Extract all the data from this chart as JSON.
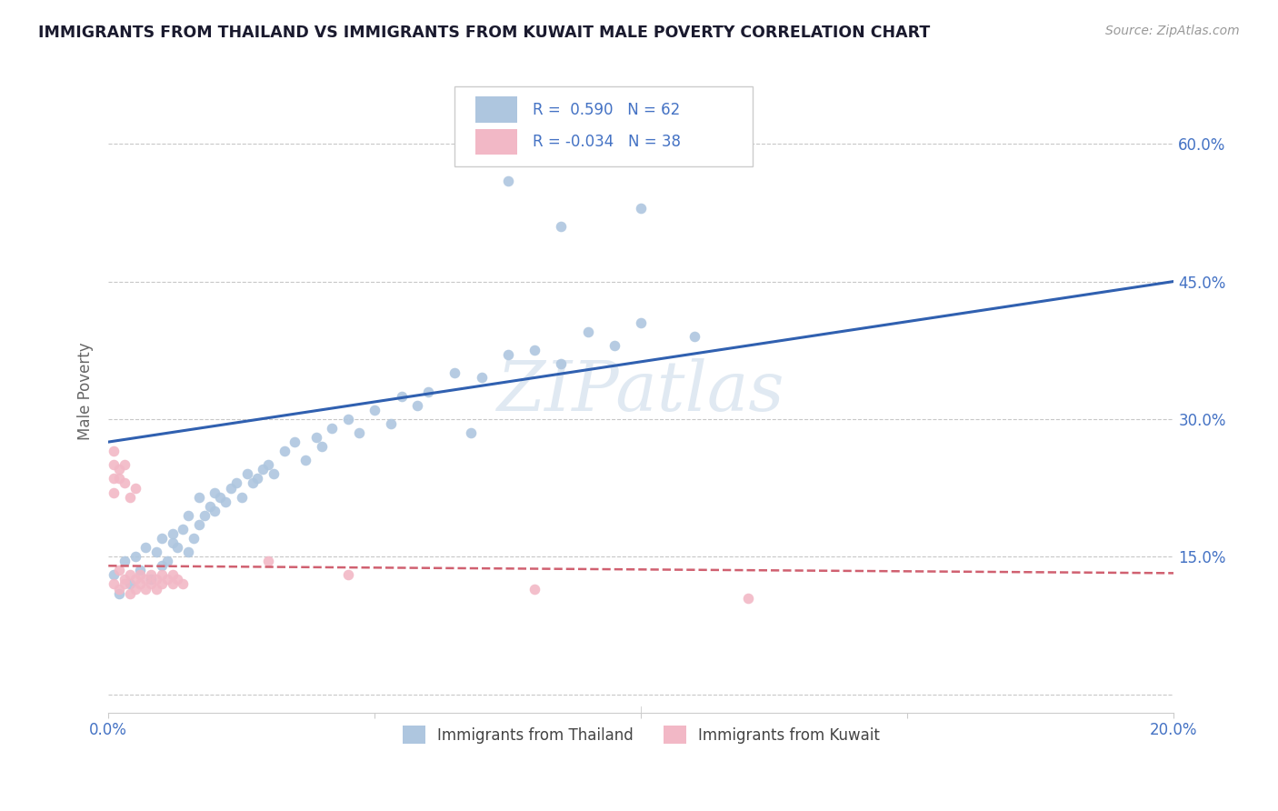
{
  "title": "IMMIGRANTS FROM THAILAND VS IMMIGRANTS FROM KUWAIT MALE POVERTY CORRELATION CHART",
  "source": "Source: ZipAtlas.com",
  "xlabel_thailand": "Immigrants from Thailand",
  "xlabel_kuwait": "Immigrants from Kuwait",
  "ylabel": "Male Poverty",
  "watermark": "ZIPatlas",
  "xlim": [
    0.0,
    0.2
  ],
  "ylim": [
    -0.02,
    0.68
  ],
  "yticks": [
    0.0,
    0.15,
    0.3,
    0.45,
    0.6
  ],
  "ytick_labels": [
    "",
    "15.0%",
    "30.0%",
    "45.0%",
    "60.0%"
  ],
  "xticks": [
    0.0,
    0.05,
    0.1,
    0.15,
    0.2
  ],
  "xtick_labels": [
    "0.0%",
    "",
    "",
    "",
    "20.0%"
  ],
  "thailand_R": 0.59,
  "thailand_N": 62,
  "kuwait_R": -0.034,
  "kuwait_N": 38,
  "thailand_color": "#aec6df",
  "kuwait_color": "#f2b8c6",
  "trend_blue": "#3060b0",
  "trend_pink": "#d06070",
  "background": "#ffffff",
  "grid_color": "#c8c8c8",
  "axis_label_color": "#4472c4",
  "title_color": "#1a1a2e",
  "thailand_scatter": [
    [
      0.001,
      0.13
    ],
    [
      0.002,
      0.11
    ],
    [
      0.003,
      0.145
    ],
    [
      0.004,
      0.12
    ],
    [
      0.005,
      0.15
    ],
    [
      0.006,
      0.135
    ],
    [
      0.007,
      0.16
    ],
    [
      0.008,
      0.125
    ],
    [
      0.009,
      0.155
    ],
    [
      0.01,
      0.14
    ],
    [
      0.01,
      0.17
    ],
    [
      0.011,
      0.145
    ],
    [
      0.012,
      0.165
    ],
    [
      0.012,
      0.175
    ],
    [
      0.013,
      0.16
    ],
    [
      0.014,
      0.18
    ],
    [
      0.015,
      0.155
    ],
    [
      0.015,
      0.195
    ],
    [
      0.016,
      0.17
    ],
    [
      0.017,
      0.185
    ],
    [
      0.017,
      0.215
    ],
    [
      0.018,
      0.195
    ],
    [
      0.019,
      0.205
    ],
    [
      0.02,
      0.2
    ],
    [
      0.02,
      0.22
    ],
    [
      0.021,
      0.215
    ],
    [
      0.022,
      0.21
    ],
    [
      0.023,
      0.225
    ],
    [
      0.024,
      0.23
    ],
    [
      0.025,
      0.215
    ],
    [
      0.026,
      0.24
    ],
    [
      0.027,
      0.23
    ],
    [
      0.028,
      0.235
    ],
    [
      0.029,
      0.245
    ],
    [
      0.03,
      0.25
    ],
    [
      0.031,
      0.24
    ],
    [
      0.033,
      0.265
    ],
    [
      0.035,
      0.275
    ],
    [
      0.037,
      0.255
    ],
    [
      0.039,
      0.28
    ],
    [
      0.04,
      0.27
    ],
    [
      0.042,
      0.29
    ],
    [
      0.045,
      0.3
    ],
    [
      0.047,
      0.285
    ],
    [
      0.05,
      0.31
    ],
    [
      0.053,
      0.295
    ],
    [
      0.055,
      0.325
    ],
    [
      0.058,
      0.315
    ],
    [
      0.06,
      0.33
    ],
    [
      0.065,
      0.35
    ],
    [
      0.068,
      0.285
    ],
    [
      0.07,
      0.345
    ],
    [
      0.075,
      0.37
    ],
    [
      0.08,
      0.375
    ],
    [
      0.085,
      0.36
    ],
    [
      0.09,
      0.395
    ],
    [
      0.095,
      0.38
    ],
    [
      0.1,
      0.405
    ],
    [
      0.11,
      0.39
    ],
    [
      0.075,
      0.56
    ],
    [
      0.085,
      0.51
    ],
    [
      0.1,
      0.53
    ]
  ],
  "kuwait_scatter": [
    [
      0.001,
      0.12
    ],
    [
      0.002,
      0.115
    ],
    [
      0.002,
      0.135
    ],
    [
      0.003,
      0.12
    ],
    [
      0.003,
      0.125
    ],
    [
      0.004,
      0.11
    ],
    [
      0.004,
      0.13
    ],
    [
      0.005,
      0.115
    ],
    [
      0.005,
      0.125
    ],
    [
      0.006,
      0.12
    ],
    [
      0.006,
      0.13
    ],
    [
      0.007,
      0.115
    ],
    [
      0.007,
      0.125
    ],
    [
      0.008,
      0.12
    ],
    [
      0.008,
      0.13
    ],
    [
      0.009,
      0.115
    ],
    [
      0.009,
      0.125
    ],
    [
      0.01,
      0.12
    ],
    [
      0.01,
      0.13
    ],
    [
      0.011,
      0.125
    ],
    [
      0.012,
      0.13
    ],
    [
      0.012,
      0.12
    ],
    [
      0.013,
      0.125
    ],
    [
      0.014,
      0.12
    ],
    [
      0.001,
      0.265
    ],
    [
      0.001,
      0.25
    ],
    [
      0.001,
      0.235
    ],
    [
      0.001,
      0.22
    ],
    [
      0.002,
      0.235
    ],
    [
      0.002,
      0.245
    ],
    [
      0.003,
      0.23
    ],
    [
      0.003,
      0.25
    ],
    [
      0.004,
      0.215
    ],
    [
      0.005,
      0.225
    ],
    [
      0.03,
      0.145
    ],
    [
      0.045,
      0.13
    ],
    [
      0.08,
      0.115
    ],
    [
      0.12,
      0.105
    ]
  ]
}
